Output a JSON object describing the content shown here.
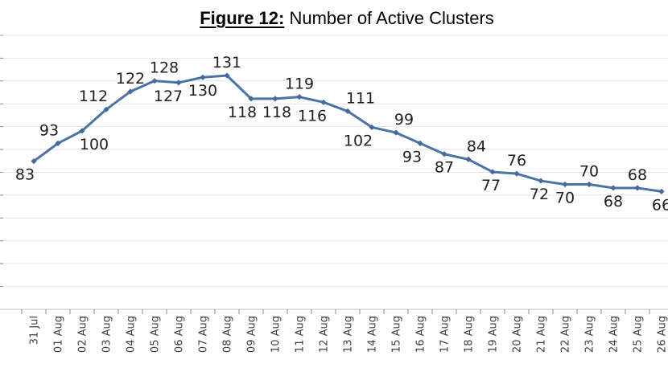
{
  "title": {
    "prefix": "Figure 12:",
    "text": " Number of Active Clusters"
  },
  "chart_data": {
    "type": "line",
    "title": "Figure 12: Number of Active Clusters",
    "xlabel": "",
    "ylabel": "",
    "x": [
      "31 Jul",
      "01 Aug",
      "02 Aug",
      "03 Aug",
      "04 Aug",
      "05 Aug",
      "06 Aug",
      "07 Aug",
      "08 Aug",
      "09 Aug",
      "10 Aug",
      "11 Aug",
      "12 Aug",
      "13 Aug",
      "14 Aug",
      "15 Aug",
      "16 Aug",
      "17 Aug",
      "18 Aug",
      "19 Aug",
      "20 Aug",
      "21 Aug",
      "22 Aug",
      "23 Aug",
      "24 Aug",
      "25 Aug",
      "26 Aug"
    ],
    "series": [
      {
        "name": "Number of Active Clusters",
        "values": [
          83,
          93,
          100,
          112,
          122,
          128,
          127,
          130,
          131,
          118,
          118,
          119,
          116,
          111,
          102,
          99,
          93,
          87,
          84,
          77,
          76,
          72,
          70,
          70,
          68,
          68,
          66
        ]
      }
    ],
    "ylim": [
      0,
      153
    ],
    "y_axis_labels_visible": false,
    "grid": "horizontal",
    "gridline_intervals": 12,
    "legend": "none",
    "x_tick_label_rotation_deg": 90,
    "marker": "diamond",
    "data_labels_visible": true,
    "label_positions": [
      {
        "side": "below",
        "dx": -11
      },
      {
        "side": "above",
        "dx": -11
      },
      {
        "side": "below",
        "dx": 15
      },
      {
        "side": "above",
        "dx": -16
      },
      {
        "side": "above",
        "dx": 0
      },
      {
        "side": "above",
        "dx": 12
      },
      {
        "side": "below",
        "dx": -13
      },
      {
        "side": "below",
        "dx": 0
      },
      {
        "side": "above",
        "dx": 0
      },
      {
        "side": "below",
        "dx": -11
      },
      {
        "side": "below",
        "dx": 2
      },
      {
        "side": "above",
        "dx": 0
      },
      {
        "side": "below",
        "dx": -14
      },
      {
        "side": "above",
        "dx": 16
      },
      {
        "side": "below",
        "dx": -17
      },
      {
        "side": "above",
        "dx": 10
      },
      {
        "side": "below",
        "dx": -10
      },
      {
        "side": "below",
        "dx": 0
      },
      {
        "side": "above",
        "dx": 10
      },
      {
        "side": "below",
        "dx": -2
      },
      {
        "side": "above",
        "dx": 0
      },
      {
        "side": "below",
        "dx": -2
      },
      {
        "side": "below",
        "dx": 0
      },
      {
        "side": "above",
        "dx": 0
      },
      {
        "side": "below",
        "dx": 0
      },
      {
        "side": "above",
        "dx": 0
      },
      {
        "side": "below",
        "dx": 0
      }
    ],
    "colors": {
      "line": "#4a74a6",
      "marker": "#44699c",
      "gridline": "#e4e4e4",
      "axis_line": "#c4c4c4",
      "tick": "#8c8c8c",
      "x_label": "#3d3d3d",
      "data_label": "#1f1f1f",
      "title": "#000000",
      "background": "#ffffff"
    }
  }
}
